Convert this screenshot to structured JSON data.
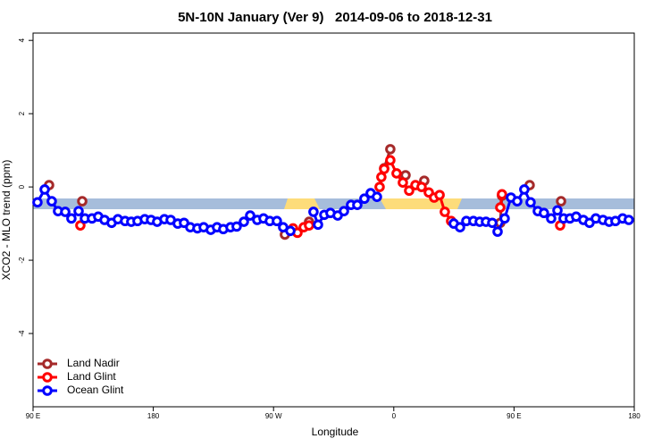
{
  "chart_data": {
    "type": "line",
    "title": "5N-10N January (Ver 9)   2014-09-06 to 2018-12-31",
    "x_label": "Longitude",
    "y_label": "XCO2 - MLO trend (ppm)",
    "xlim": [
      90,
      540
    ],
    "ylim": [
      -6,
      4.2
    ],
    "xticks": [
      {
        "value": 90,
        "label": "90 E"
      },
      180,
      {
        "value": 270,
        "label": "90 W"
      },
      {
        "value": 360,
        "label": "0"
      },
      {
        "value": 450,
        "label": "90 E"
      },
      {
        "value": 540,
        "label": "180"
      }
    ],
    "yticks": [
      -4,
      -2,
      0,
      2,
      4
    ],
    "legend": "bottom-left",
    "series": [
      {
        "name": "Land Nadir",
        "color": "#a52a2a",
        "x": [
          102.0,
          null,
          126.8,
          null,
          278.5,
          null,
          296.6,
          null,
          352.8,
          357.4,
          null,
          368.8,
          null,
          382.8,
          null,
          439.7,
          441.0,
          null,
          461.7,
          null,
          485.2
        ],
        "values": [
          0.05,
          null,
          -0.39,
          null,
          -1.3,
          null,
          -0.95,
          null,
          0.51,
          1.03,
          null,
          0.32,
          null,
          0.17,
          null,
          -0.98,
          -0.24,
          null,
          0.05,
          null,
          -0.39
        ]
      },
      {
        "name": "Land Glint",
        "color": "#ff0000",
        "x": [
          125.4,
          null,
          284.6,
          287.9,
          292.6,
          296.6,
          null,
          349.4,
          350.7,
          352.8,
          357.4,
          362.1,
          366.8,
          371.5,
          376.2,
          380.8,
          386.2,
          390.2,
          394.3,
          398.2,
          402.9,
          null,
          439.7,
          441.0,
          null,
          484.5
        ],
        "values": [
          -1.05,
          null,
          -1.13,
          -1.25,
          -1.1,
          -1.05,
          null,
          0.0,
          0.27,
          0.49,
          0.73,
          0.37,
          0.12,
          -0.1,
          0.05,
          0.0,
          -0.15,
          -0.29,
          -0.22,
          -0.68,
          -0.93,
          null,
          -0.56,
          -0.2,
          null,
          -1.05
        ]
      },
      {
        "name": "Ocean Glint",
        "color": "#0000ff",
        "x": [
          93.3,
          98.7,
          104.0,
          108.7,
          114.1,
          118.7,
          124.1,
          128.8,
          134.1,
          138.8,
          143.5,
          148.8,
          153.5,
          158.9,
          163.5,
          168.2,
          173.6,
          178.3,
          182.9,
          188.3,
          193.0,
          198.3,
          203.0,
          207.7,
          213.0,
          217.7,
          223.0,
          227.7,
          232.4,
          237.8,
          242.4,
          247.8,
          252.5,
          257.8,
          262.5,
          267.2,
          272.5,
          277.2,
          282.6,
          null,
          299.9,
          303.3,
          308.0,
          312.6,
          318.0,
          322.7,
          328.0,
          332.7,
          338.0,
          342.7,
          347.4,
          null,
          404.9,
          409.6,
          414.3,
          419.6,
          424.3,
          429.0,
          433.7,
          437.7,
          443.0,
          447.7,
          452.4,
          457.7,
          462.4,
          467.8,
          472.4,
          477.8,
          482.5,
          487.1,
          491.8,
          496.5,
          501.9,
          506.5,
          511.2,
          516.6,
          521.2,
          525.9,
          531.3,
          535.9
        ],
        "values": [
          -0.42,
          -0.07,
          -0.39,
          -0.66,
          -0.68,
          -0.86,
          -0.66,
          -0.86,
          -0.86,
          -0.81,
          -0.9,
          -0.98,
          -0.88,
          -0.93,
          -0.95,
          -0.93,
          -0.88,
          -0.9,
          -0.95,
          -0.88,
          -0.9,
          -1.0,
          -0.98,
          -1.1,
          -1.13,
          -1.1,
          -1.17,
          -1.1,
          -1.15,
          -1.1,
          -1.08,
          -0.95,
          -0.78,
          -0.9,
          -0.86,
          -0.93,
          -0.93,
          -1.1,
          -1.2,
          null,
          -0.68,
          -1.03,
          -0.76,
          -0.71,
          -0.78,
          -0.66,
          -0.49,
          -0.49,
          -0.32,
          -0.17,
          -0.27,
          null,
          -1.0,
          -1.1,
          -0.93,
          -0.93,
          -0.95,
          -0.95,
          -0.98,
          -1.22,
          -0.86,
          -0.29,
          -0.39,
          -0.07,
          -0.42,
          -0.66,
          -0.71,
          -0.86,
          -0.64,
          -0.86,
          -0.86,
          -0.81,
          -0.9,
          -0.98,
          -0.86,
          -0.9,
          -0.95,
          -0.93,
          -0.86,
          -0.9
        ]
      }
    ]
  }
}
